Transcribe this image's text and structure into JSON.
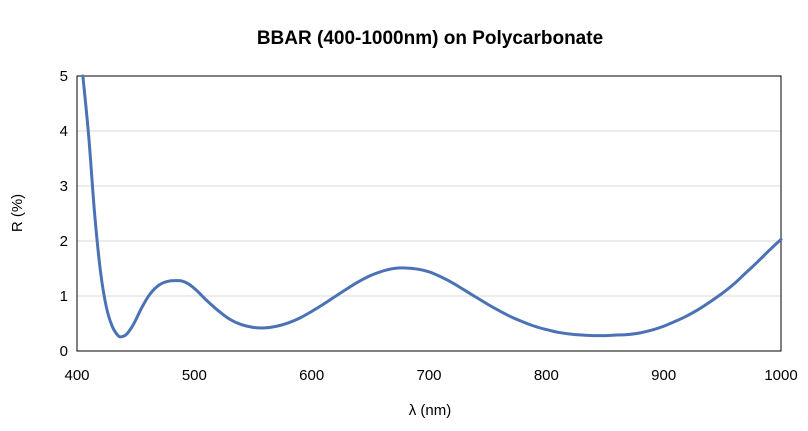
{
  "chart_data": {
    "type": "line",
    "title": "BBAR (400-1000nm) on Polycarbonate",
    "xlabel": "λ (nm)",
    "ylabel": "R (%)",
    "xlim": [
      400,
      1000
    ],
    "ylim": [
      0,
      5
    ],
    "x_ticks": [
      400,
      500,
      600,
      700,
      800,
      900,
      1000
    ],
    "y_ticks": [
      0,
      1,
      2,
      3,
      4,
      5
    ],
    "grid": true,
    "colors": {
      "line": "#4a72b5",
      "grid": "#d9d9d9",
      "frame": "#000000"
    },
    "series": [
      {
        "x": [
          405,
          410,
          415,
          420,
          425,
          430,
          435,
          438,
          442,
          448,
          455,
          462,
          470,
          478,
          486,
          490,
          495,
          502,
          510,
          520,
          530,
          540,
          550,
          560,
          570,
          580,
          590,
          600,
          610,
          620,
          630,
          640,
          650,
          660,
          670,
          680,
          690,
          700,
          710,
          720,
          730,
          740,
          750,
          760,
          770,
          780,
          790,
          800,
          810,
          820,
          830,
          840,
          850,
          860,
          870,
          880,
          890,
          900,
          910,
          920,
          930,
          940,
          950,
          960,
          970,
          980,
          990,
          1000
        ],
        "values": [
          5.0,
          3.9,
          2.5,
          1.45,
          0.8,
          0.45,
          0.28,
          0.26,
          0.3,
          0.48,
          0.78,
          1.03,
          1.2,
          1.27,
          1.28,
          1.27,
          1.22,
          1.1,
          0.93,
          0.74,
          0.58,
          0.48,
          0.43,
          0.42,
          0.45,
          0.51,
          0.6,
          0.72,
          0.85,
          0.99,
          1.13,
          1.26,
          1.37,
          1.45,
          1.5,
          1.51,
          1.49,
          1.44,
          1.35,
          1.24,
          1.11,
          0.98,
          0.85,
          0.73,
          0.62,
          0.53,
          0.45,
          0.39,
          0.34,
          0.31,
          0.29,
          0.28,
          0.28,
          0.29,
          0.3,
          0.33,
          0.38,
          0.45,
          0.54,
          0.64,
          0.76,
          0.9,
          1.05,
          1.22,
          1.42,
          1.62,
          1.83,
          2.03
        ]
      }
    ]
  }
}
